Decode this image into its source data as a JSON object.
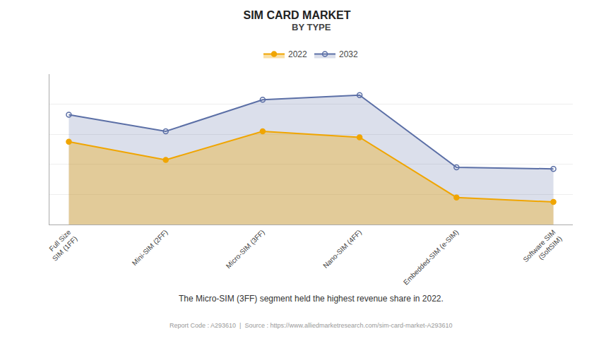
{
  "chart_data": {
    "type": "area",
    "title": "SIM CARD MARKET",
    "subtitle": "BY TYPE",
    "categories": [
      "Full Size\nSIM (1FF)",
      "Mini-SIM (2FF)",
      "Micro-SIM (3FF)",
      "Nano-SIM (4FF)",
      "Embedded-SIM (e-SIM)",
      "Software SIM\n(SoftSIM)"
    ],
    "series": [
      {
        "name": "2022",
        "color": "#F0A500",
        "marker": "circle",
        "values": [
          55,
          43,
          62,
          58,
          18,
          15
        ]
      },
      {
        "name": "2032",
        "color": "#5B6FA6",
        "marker": "circle-open",
        "values": [
          73,
          62,
          83,
          86,
          38,
          37
        ]
      }
    ],
    "ylim": [
      0,
      100
    ],
    "yticks": [
      20,
      40,
      60,
      80,
      100
    ],
    "grid": true,
    "tick_labels": "x",
    "legend": "top",
    "annotations": [
      "The Micro-SIM (3FF) segment held the highest revenue share in 2022.",
      "Report Code : A293610  |  Source : https://www.alliedmarketresearch.com/sim-card-market-A293610"
    ]
  }
}
